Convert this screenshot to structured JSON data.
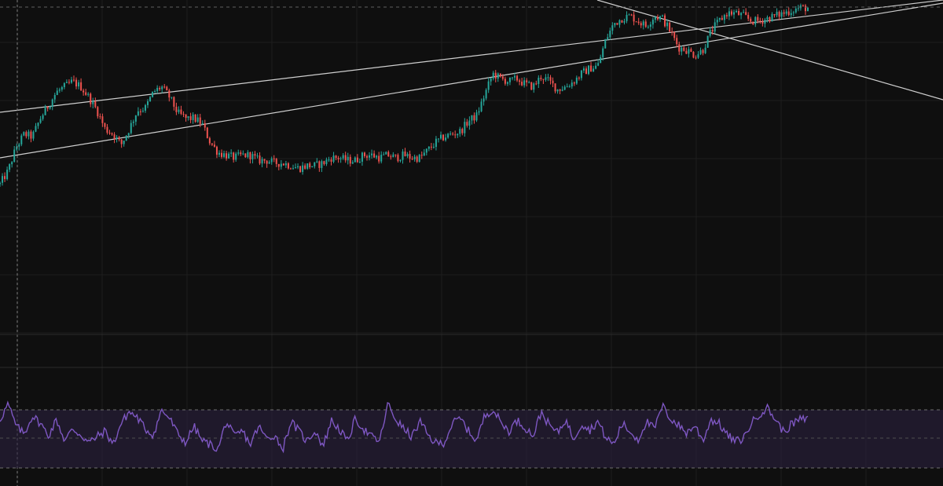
{
  "colors": {
    "background": "#0f0f0f",
    "grid": "#1e1e1e",
    "candle_up": "#26a69a",
    "candle_down": "#ef5350",
    "trendline": "#cfcfcf",
    "rsi_line": "#7e57c2",
    "rsi_band": "#2a1f3d",
    "rsi_overbought_fill": "#26a69a",
    "crosshair": "#7f7f7f",
    "separator": "#2b2b2b"
  },
  "chart_data": [
    {
      "type": "candlestick",
      "name": "price",
      "x_range": [
        0,
        100
      ],
      "y_range": [
        0,
        100
      ],
      "grid": true,
      "close": [
        [
          0,
          33
        ],
        [
          1,
          38
        ],
        [
          2,
          47
        ],
        [
          3,
          52
        ],
        [
          4,
          51
        ],
        [
          5,
          58
        ],
        [
          6,
          63
        ],
        [
          7,
          68
        ],
        [
          8,
          70
        ],
        [
          9,
          72
        ],
        [
          10,
          70
        ],
        [
          11,
          66
        ],
        [
          12,
          61
        ],
        [
          13,
          54
        ],
        [
          14,
          52
        ],
        [
          15,
          48
        ],
        [
          16,
          54
        ],
        [
          17,
          61
        ],
        [
          18,
          62
        ],
        [
          19,
          68
        ],
        [
          20,
          70
        ],
        [
          21,
          66
        ],
        [
          22,
          60
        ],
        [
          23,
          58
        ],
        [
          24,
          58
        ],
        [
          25,
          56
        ],
        [
          26,
          49
        ],
        [
          27,
          45
        ],
        [
          28,
          44
        ],
        [
          29,
          43
        ],
        [
          30,
          44
        ],
        [
          31,
          44
        ],
        [
          32,
          42
        ],
        [
          33,
          42
        ],
        [
          34,
          41
        ],
        [
          35,
          41
        ],
        [
          36,
          40
        ],
        [
          37,
          39
        ],
        [
          38,
          40
        ],
        [
          39,
          40
        ],
        [
          40,
          41
        ],
        [
          41,
          43
        ],
        [
          42,
          43
        ],
        [
          43,
          42
        ],
        [
          44,
          42
        ],
        [
          45,
          44
        ],
        [
          46,
          44
        ],
        [
          47,
          43
        ],
        [
          48,
          44
        ],
        [
          49,
          43
        ],
        [
          50,
          44
        ],
        [
          51,
          43
        ],
        [
          52,
          43
        ],
        [
          53,
          46
        ],
        [
          54,
          49
        ],
        [
          55,
          51
        ],
        [
          56,
          52
        ],
        [
          57,
          53
        ],
        [
          58,
          57
        ],
        [
          59,
          59
        ],
        [
          60,
          67
        ],
        [
          61,
          75
        ],
        [
          62,
          73
        ],
        [
          63,
          72
        ],
        [
          64,
          73
        ],
        [
          65,
          71
        ],
        [
          66,
          70
        ],
        [
          67,
          74
        ],
        [
          68,
          72
        ],
        [
          69,
          69
        ],
        [
          70,
          70
        ],
        [
          71,
          72
        ],
        [
          72,
          75
        ],
        [
          73,
          77
        ],
        [
          74,
          78
        ],
        [
          75,
          88
        ],
        [
          76,
          94
        ],
        [
          77,
          96
        ],
        [
          78,
          97
        ],
        [
          79,
          95
        ],
        [
          80,
          93
        ],
        [
          81,
          97
        ],
        [
          82,
          96
        ],
        [
          83,
          91
        ],
        [
          84,
          85
        ],
        [
          85,
          84
        ],
        [
          86,
          82
        ],
        [
          87,
          84
        ],
        [
          88,
          91
        ],
        [
          89,
          95
        ],
        [
          90,
          98
        ],
        [
          91,
          98
        ],
        [
          92,
          97
        ],
        [
          93,
          95
        ],
        [
          94,
          95
        ],
        [
          95,
          96
        ],
        [
          96,
          97
        ],
        [
          97,
          98
        ],
        [
          98,
          99
        ],
        [
          99,
          100
        ]
      ]
    },
    {
      "type": "line",
      "name": "oscillator",
      "x_range": [
        0,
        100
      ],
      "y_range": [
        0,
        100
      ],
      "reference_lines": [
        30,
        50,
        70
      ],
      "values": [
        [
          0,
          62
        ],
        [
          1,
          78
        ],
        [
          2,
          55
        ],
        [
          3,
          47
        ],
        [
          4,
          66
        ],
        [
          5,
          58
        ],
        [
          6,
          45
        ],
        [
          7,
          62
        ],
        [
          8,
          40
        ],
        [
          9,
          52
        ],
        [
          10,
          46
        ],
        [
          11,
          38
        ],
        [
          12,
          44
        ],
        [
          13,
          50
        ],
        [
          14,
          36
        ],
        [
          15,
          58
        ],
        [
          16,
          70
        ],
        [
          17,
          64
        ],
        [
          18,
          52
        ],
        [
          19,
          46
        ],
        [
          20,
          72
        ],
        [
          21,
          63
        ],
        [
          22,
          47
        ],
        [
          23,
          38
        ],
        [
          24,
          55
        ],
        [
          25,
          40
        ],
        [
          26,
          36
        ],
        [
          27,
          31
        ],
        [
          28,
          60
        ],
        [
          29,
          44
        ],
        [
          30,
          50
        ],
        [
          31,
          36
        ],
        [
          32,
          55
        ],
        [
          33,
          42
        ],
        [
          34,
          46
        ],
        [
          35,
          31
        ],
        [
          36,
          60
        ],
        [
          37,
          50
        ],
        [
          38,
          39
        ],
        [
          39,
          51
        ],
        [
          40,
          34
        ],
        [
          41,
          61
        ],
        [
          42,
          52
        ],
        [
          43,
          39
        ],
        [
          44,
          63
        ],
        [
          45,
          52
        ],
        [
          46,
          44
        ],
        [
          47,
          39
        ],
        [
          48,
          78
        ],
        [
          49,
          62
        ],
        [
          50,
          52
        ],
        [
          51,
          44
        ],
        [
          52,
          60
        ],
        [
          53,
          45
        ],
        [
          54,
          37
        ],
        [
          55,
          38
        ],
        [
          56,
          58
        ],
        [
          57,
          63
        ],
        [
          58,
          50
        ],
        [
          59,
          40
        ],
        [
          60,
          66
        ],
        [
          61,
          73
        ],
        [
          62,
          59
        ],
        [
          63,
          50
        ],
        [
          64,
          61
        ],
        [
          65,
          54
        ],
        [
          66,
          45
        ],
        [
          67,
          70
        ],
        [
          68,
          56
        ],
        [
          69,
          48
        ],
        [
          70,
          62
        ],
        [
          71,
          42
        ],
        [
          72,
          58
        ],
        [
          73,
          51
        ],
        [
          74,
          60
        ],
        [
          75,
          43
        ],
        [
          76,
          36
        ],
        [
          77,
          58
        ],
        [
          78,
          49
        ],
        [
          79,
          41
        ],
        [
          80,
          60
        ],
        [
          81,
          52
        ],
        [
          82,
          76
        ],
        [
          83,
          63
        ],
        [
          84,
          56
        ],
        [
          85,
          48
        ],
        [
          86,
          56
        ],
        [
          87,
          40
        ],
        [
          88,
          62
        ],
        [
          89,
          58
        ],
        [
          90,
          46
        ],
        [
          91,
          39
        ],
        [
          92,
          42
        ],
        [
          93,
          58
        ],
        [
          94,
          68
        ],
        [
          95,
          74
        ],
        [
          96,
          62
        ],
        [
          97,
          49
        ],
        [
          98,
          57
        ],
        [
          99,
          62
        ]
      ]
    }
  ]
}
